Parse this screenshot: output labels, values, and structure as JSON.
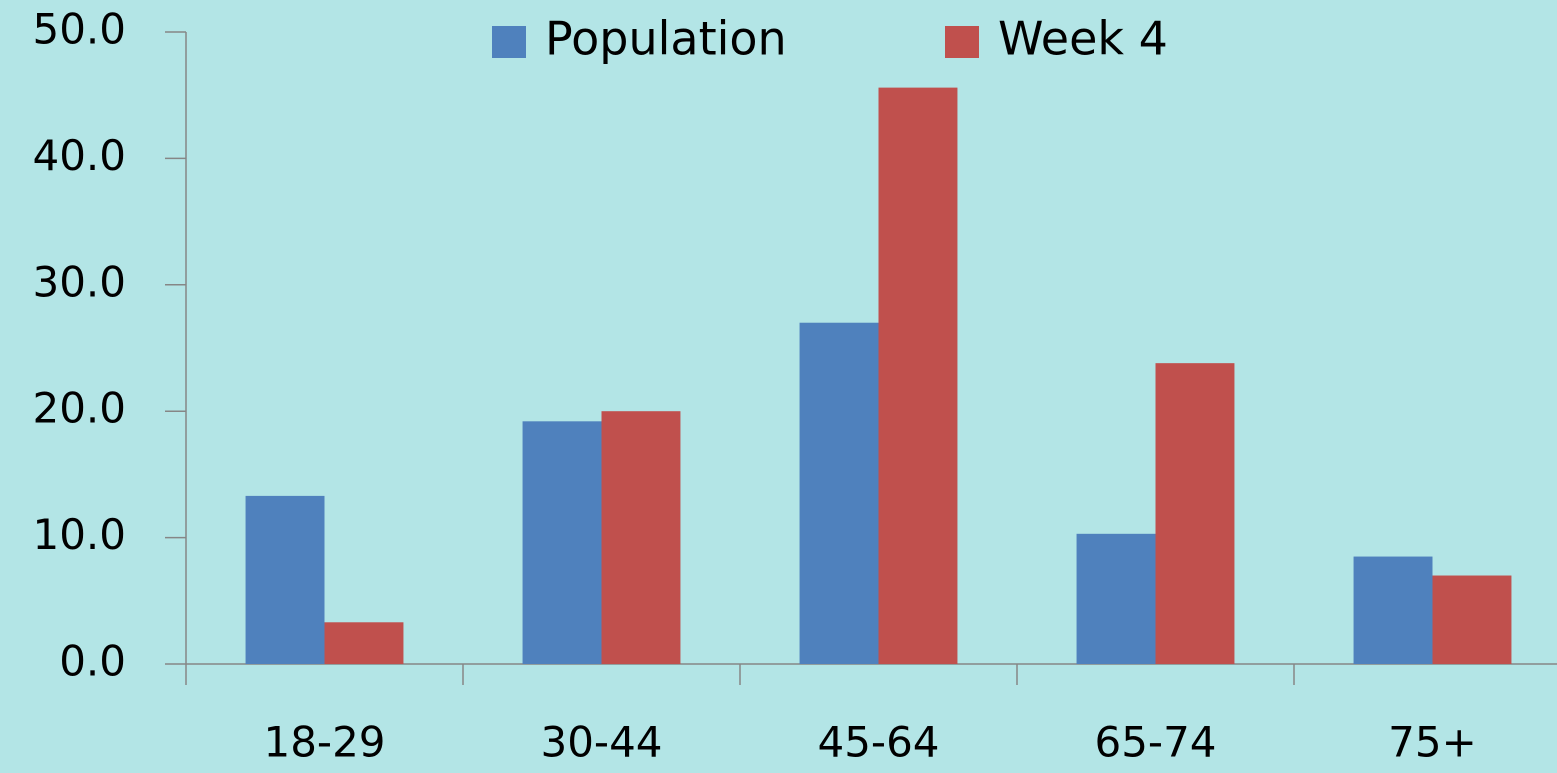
{
  "chart_data": {
    "type": "bar",
    "categories": [
      "18-29",
      "30-44",
      "45-64",
      "65-74",
      "75+"
    ],
    "series": [
      {
        "name": "Population",
        "color": "#4f81bd",
        "values": [
          13.3,
          19.2,
          27.0,
          10.3,
          8.5
        ]
      },
      {
        "name": "Week 4",
        "color": "#c0504d",
        "values": [
          3.3,
          20.0,
          45.6,
          23.8,
          7.0
        ]
      }
    ],
    "ylim": [
      0,
      50
    ],
    "yticks": [
      {
        "value": 0,
        "label": "0.0"
      },
      {
        "value": 10,
        "label": "10.0"
      },
      {
        "value": 20,
        "label": "20.0"
      },
      {
        "value": 30,
        "label": "30.0"
      },
      {
        "value": 40,
        "label": "40.0"
      },
      {
        "value": 50,
        "label": "50.0"
      }
    ],
    "legend": "top"
  }
}
